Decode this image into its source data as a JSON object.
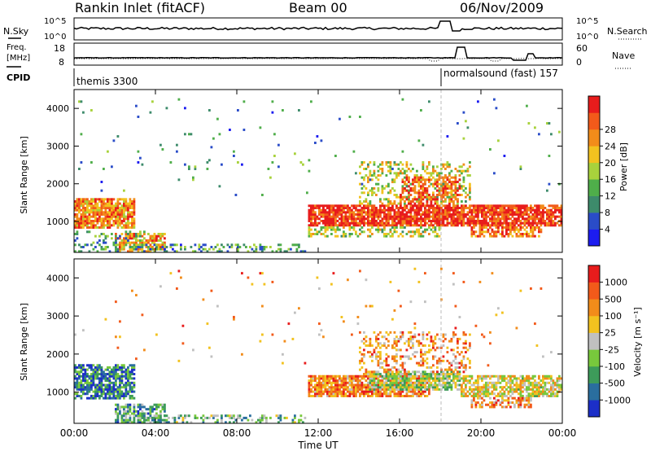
{
  "header": {
    "station": "Rankin Inlet (fitACF)",
    "beam": "Beam 00",
    "date": "06/Nov/2009"
  },
  "panels": {
    "nsky": {
      "label": "N.Sky",
      "tick_top": "10^5",
      "tick_bottom": "10^0",
      "right_label": "N.Search",
      "right_tick_top": "10^5",
      "right_tick_bottom": "10^0"
    },
    "freq": {
      "label_line1": "Freq.",
      "label_line2": "[MHz]",
      "tick_top": "18",
      "tick_bottom": "8",
      "right_label": "Nave",
      "right_tick_top": "60",
      "right_tick_bottom": "0"
    },
    "cpid": {
      "label": "CPID",
      "mode1": "themis 3300",
      "mode2": "normalsound (fast) 157"
    },
    "power": {
      "ylabel": "Slant Range [km]",
      "cbar_label": "Power [dB]"
    },
    "velocity": {
      "ylabel": "Slant Range [km]",
      "cbar_label": "Velocity [m s⁻¹]"
    }
  },
  "xaxis": {
    "label": "Time UT",
    "ticks": [
      "00:00",
      "04:00",
      "08:00",
      "12:00",
      "16:00",
      "20:00",
      "00:00"
    ]
  },
  "chart_data": [
    {
      "type": "heatmap",
      "title": "Power",
      "xlabel": "Time UT",
      "ylabel": "Slant Range [km]",
      "xlim_hours": [
        0,
        24
      ],
      "ylim_km": [
        180,
        4500
      ],
      "yticks": [
        1000,
        2000,
        3000,
        4000
      ],
      "colorbar": {
        "label": "Power [dB]",
        "ticks": [
          "4",
          "8",
          "12",
          "16",
          "20",
          "24",
          "28"
        ],
        "colors": [
          "#1c1cf0",
          "#2a4cc8",
          "#3d8b6b",
          "#4fae4a",
          "#a8d23c",
          "#f2c21f",
          "#f28c1a",
          "#f25a1a",
          "#e81c1c"
        ]
      },
      "regions": [
        {
          "t0": 0.0,
          "t1": 3.0,
          "r0": 850,
          "r1": 1650,
          "level": 0.75,
          "density": 0.85
        },
        {
          "t0": 2.0,
          "t1": 4.5,
          "r0": 200,
          "r1": 700,
          "level": 0.7,
          "density": 0.7
        },
        {
          "t0": 0.0,
          "t1": 3.5,
          "r0": 200,
          "r1": 800,
          "level": 0.35,
          "density": 0.25
        },
        {
          "t0": 3.5,
          "t1": 11.5,
          "r0": 180,
          "r1": 420,
          "level": 0.3,
          "density": 0.35
        },
        {
          "t0": 11.5,
          "t1": 24.0,
          "r0": 900,
          "r1": 1500,
          "level": 0.9,
          "density": 0.85
        },
        {
          "t0": 14.0,
          "t1": 19.5,
          "r0": 1500,
          "r1": 2600,
          "level": 0.55,
          "density": 0.3
        },
        {
          "t0": 16.0,
          "t1": 19.0,
          "r0": 1500,
          "r1": 2200,
          "level": 0.85,
          "density": 0.45
        },
        {
          "t0": 19.5,
          "t1": 23.0,
          "r0": 600,
          "r1": 900,
          "level": 0.8,
          "density": 0.6
        },
        {
          "t0": 11.5,
          "t1": 18.0,
          "r0": 600,
          "r1": 900,
          "level": 0.5,
          "density": 0.45
        },
        {
          "t0": 0.0,
          "t1": 24.0,
          "r0": 1700,
          "r1": 4300,
          "level": 0.3,
          "density": 0.012
        }
      ]
    },
    {
      "type": "heatmap",
      "title": "Velocity",
      "xlabel": "Time UT",
      "ylabel": "Slant Range [km]",
      "xlim_hours": [
        0,
        24
      ],
      "ylim_km": [
        180,
        4500
      ],
      "yticks": [
        1000,
        2000,
        3000,
        4000
      ],
      "colorbar": {
        "label": "Velocity [m s⁻¹]",
        "ticks": [
          "1000",
          "500",
          "100",
          "25",
          "-25",
          "-100",
          "-500",
          "-1000"
        ],
        "colors": [
          "#1c2fc8",
          "#2a6e9e",
          "#3d9b5a",
          "#78c83c",
          "#c0c0c0",
          "#f2c21f",
          "#f28c1a",
          "#f25a1a",
          "#e81c1c"
        ]
      },
      "regions": [
        {
          "t0": 0.0,
          "t1": 3.0,
          "r0": 850,
          "r1": 1750,
          "level": 0.2,
          "density": 0.75
        },
        {
          "t0": 2.0,
          "t1": 4.5,
          "r0": 200,
          "r1": 700,
          "level": 0.3,
          "density": 0.65
        },
        {
          "t0": 3.5,
          "t1": 11.5,
          "r0": 180,
          "r1": 420,
          "level": 0.35,
          "density": 0.35
        },
        {
          "t0": 11.5,
          "t1": 17.5,
          "r0": 900,
          "r1": 1500,
          "level": 0.75,
          "density": 0.85
        },
        {
          "t0": 14.5,
          "t1": 19.0,
          "r0": 1100,
          "r1": 1600,
          "level": 0.45,
          "density": 0.75
        },
        {
          "t0": 14.0,
          "t1": 19.5,
          "r0": 1500,
          "r1": 2600,
          "level": 0.7,
          "density": 0.3
        },
        {
          "t0": 19.0,
          "t1": 24.0,
          "r0": 900,
          "r1": 1500,
          "level": 0.55,
          "density": 0.7
        },
        {
          "t0": 19.5,
          "t1": 22.5,
          "r0": 600,
          "r1": 900,
          "level": 0.7,
          "density": 0.55
        },
        {
          "t0": 0.0,
          "t1": 24.0,
          "r0": 1700,
          "r1": 4300,
          "level": 0.7,
          "density": 0.012
        }
      ]
    }
  ]
}
